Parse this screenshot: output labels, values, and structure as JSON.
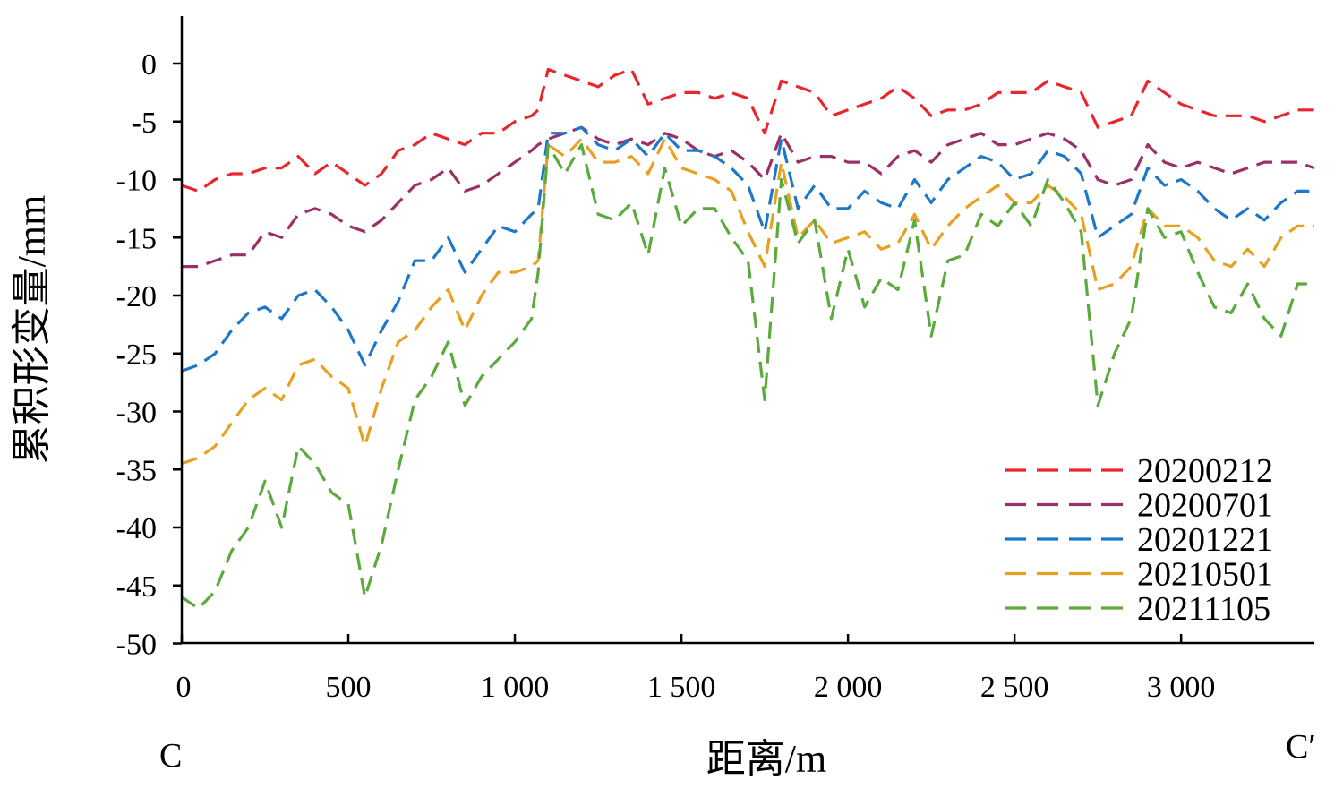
{
  "chart_data": {
    "type": "line",
    "xlabel": "距离/m",
    "ylabel": "累积形变量/mm",
    "xlim": [
      0,
      3400
    ],
    "ylim": [
      -50,
      4
    ],
    "x_ticks": [
      0,
      500,
      1000,
      1500,
      2000,
      2500,
      3000
    ],
    "x_tick_labels": [
      "0",
      "500",
      "1 000",
      "1 500",
      "2 000",
      "2 500",
      "3 000"
    ],
    "y_ticks": [
      0,
      -5,
      -10,
      -15,
      -20,
      -25,
      -30,
      -35,
      -40,
      -45,
      -50
    ],
    "y_tick_labels": [
      "0",
      "-5",
      "-10",
      "-15",
      "-20",
      "-25",
      "-30",
      "-35",
      "-40",
      "-45",
      "-50"
    ],
    "endpoint_labels": {
      "left": "C",
      "right": "C′"
    },
    "grid": false,
    "legend_position": "bottom-right",
    "line_style": "dashed",
    "x": [
      0,
      50,
      100,
      150,
      200,
      250,
      300,
      350,
      400,
      450,
      500,
      550,
      600,
      650,
      700,
      750,
      800,
      850,
      900,
      950,
      1000,
      1050,
      1070,
      1100,
      1150,
      1200,
      1250,
      1300,
      1350,
      1400,
      1450,
      1500,
      1550,
      1600,
      1650,
      1700,
      1750,
      1800,
      1850,
      1900,
      1950,
      2000,
      2050,
      2100,
      2150,
      2200,
      2250,
      2300,
      2350,
      2400,
      2450,
      2500,
      2550,
      2600,
      2650,
      2700,
      2750,
      2800,
      2850,
      2900,
      2950,
      3000,
      3050,
      3100,
      3150,
      3200,
      3250,
      3300,
      3350,
      3400
    ],
    "series": [
      {
        "name": "20200212",
        "color": "#e8262e",
        "values": [
          -10.5,
          -11,
          -10,
          -9.5,
          -9.5,
          -9,
          -9,
          -8,
          -9.5,
          -8.5,
          -9.5,
          -10.5,
          -9.5,
          -7.5,
          -7,
          -6,
          -6.5,
          -7,
          -6,
          -6,
          -5,
          -4.5,
          -4,
          -0.5,
          -1,
          -1.5,
          -2,
          -1,
          -0.5,
          -3.5,
          -3,
          -2.5,
          -2.5,
          -3,
          -2.5,
          -3,
          -6,
          -1.5,
          -2,
          -2.5,
          -4.5,
          -4,
          -3.5,
          -3,
          -2,
          -3,
          -4.5,
          -4,
          -4,
          -3.5,
          -2.5,
          -2.5,
          -2.5,
          -1.5,
          -2,
          -2.5,
          -5.5,
          -5,
          -4.5,
          -1.5,
          -2.5,
          -3.5,
          -4,
          -4.5,
          -4.5,
          -4.5,
          -5,
          -4.5,
          -4,
          -4
        ]
      },
      {
        "name": "20200701",
        "color": "#9b3068",
        "values": [
          -17.5,
          -17.5,
          -17,
          -16.5,
          -16.5,
          -14.5,
          -15,
          -13,
          -12.5,
          -13,
          -14,
          -14.5,
          -13.5,
          -12,
          -10.5,
          -10,
          -9,
          -11,
          -10.5,
          -9.5,
          -8.5,
          -7.5,
          -7,
          -6.5,
          -6,
          -5.5,
          -6.5,
          -7,
          -6.5,
          -7,
          -6,
          -6.5,
          -7.5,
          -8,
          -7.5,
          -8.5,
          -10,
          -6,
          -8.5,
          -8,
          -8,
          -8.5,
          -8.5,
          -9.5,
          -8,
          -7.5,
          -8.5,
          -7,
          -6.5,
          -6,
          -7,
          -7,
          -6.5,
          -6,
          -6.5,
          -7.5,
          -10,
          -10.5,
          -10,
          -7,
          -8.5,
          -9,
          -8.5,
          -9,
          -9.5,
          -9,
          -8.5,
          -8.5,
          -8.5,
          -9
        ]
      },
      {
        "name": "20201221",
        "color": "#1e78c8",
        "values": [
          -26.5,
          -26,
          -25,
          -23,
          -21.5,
          -21,
          -22,
          -20,
          -19.5,
          -21,
          -23,
          -26,
          -23,
          -20.5,
          -17,
          -17,
          -15,
          -18,
          -16,
          -14,
          -14.5,
          -13,
          -12.5,
          -6,
          -6,
          -5.5,
          -7,
          -7.5,
          -6.5,
          -8,
          -6,
          -7.5,
          -7.5,
          -8,
          -9,
          -10.5,
          -14.5,
          -6.5,
          -12.5,
          -10.5,
          -12.5,
          -12.5,
          -11,
          -12,
          -12.5,
          -10,
          -12,
          -10,
          -9,
          -8,
          -8.5,
          -10,
          -9.5,
          -7.5,
          -8,
          -9.5,
          -15,
          -14,
          -13,
          -9,
          -10.5,
          -10,
          -11,
          -12.5,
          -13.5,
          -12.5,
          -13.5,
          -12,
          -11,
          -11
        ]
      },
      {
        "name": "20210501",
        "color": "#e8a020",
        "values": [
          -34.5,
          -34,
          -33,
          -31,
          -29,
          -28,
          -29,
          -26,
          -25.5,
          -27,
          -28,
          -33,
          -28,
          -24,
          -23,
          -21,
          -19.5,
          -23,
          -20,
          -18,
          -18,
          -17.5,
          -17,
          -7,
          -8,
          -6.5,
          -8.5,
          -8.5,
          -8,
          -9.5,
          -6.5,
          -9,
          -9.5,
          -10,
          -11,
          -14.5,
          -17.5,
          -8.5,
          -15,
          -13.5,
          -15.5,
          -15,
          -14.5,
          -16,
          -15.5,
          -13,
          -16,
          -14,
          -12.5,
          -11.5,
          -10.5,
          -12,
          -12,
          -10.5,
          -11.5,
          -13,
          -19.5,
          -19,
          -17.5,
          -12.5,
          -14,
          -14,
          -15,
          -17,
          -17.5,
          -16,
          -17.5,
          -15,
          -14,
          -14
        ]
      },
      {
        "name": "20211105",
        "color": "#5aaa3c",
        "values": [
          -46,
          -47,
          -45.5,
          -42,
          -40,
          -36,
          -40,
          -33,
          -34.5,
          -37,
          -38,
          -46,
          -41.5,
          -35,
          -29,
          -27,
          -24,
          -29.5,
          -27,
          -25.5,
          -24,
          -22,
          -18,
          -7,
          -9.5,
          -7,
          -13,
          -13.5,
          -12,
          -16.5,
          -9,
          -14,
          -12.5,
          -12.5,
          -15,
          -17,
          -29,
          -10,
          -15.5,
          -13.5,
          -22,
          -16,
          -21,
          -18.5,
          -19.5,
          -13.5,
          -23.5,
          -17,
          -16.5,
          -13,
          -14,
          -12,
          -14,
          -10,
          -12,
          -14.5,
          -29.5,
          -25,
          -22,
          -12.5,
          -15,
          -14.5,
          -18,
          -21,
          -21.5,
          -19,
          -22,
          -23.5,
          -19,
          -19
        ]
      }
    ]
  }
}
